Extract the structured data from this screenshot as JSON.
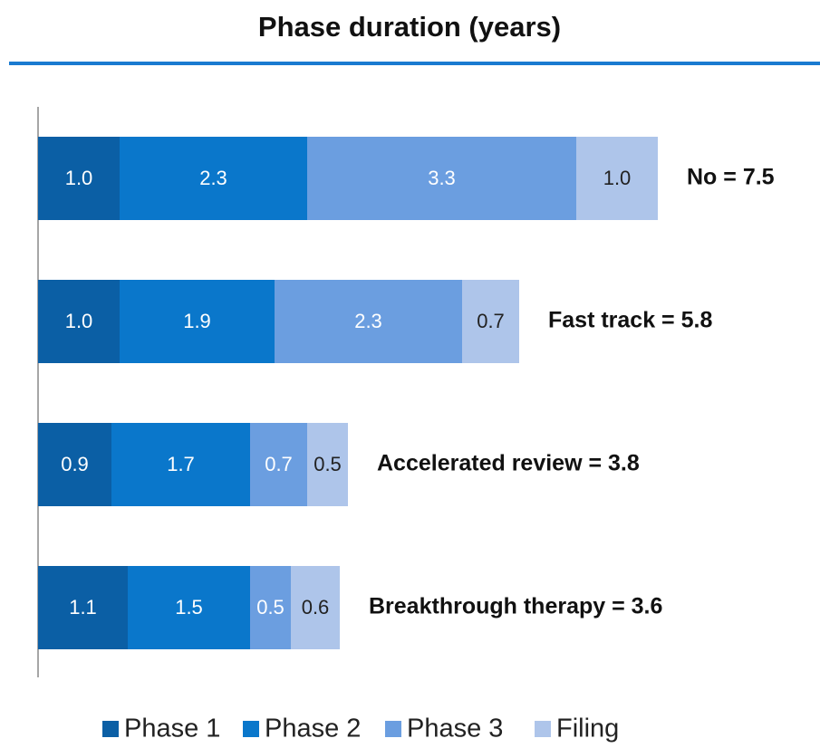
{
  "chart_data": {
    "type": "stacked-barh",
    "title": "Phase duration (years)",
    "categories": [
      "No = 7.5",
      "Fast track = 5.8",
      "Accelerated review = 3.8",
      "Breakthrough therapy = 3.6"
    ],
    "series": [
      {
        "name": "Phase 1",
        "color": "#0b5fa5",
        "values": [
          1.0,
          1.0,
          0.9,
          1.1
        ],
        "value_labels": [
          "1.0",
          "1.0",
          "0.9",
          "1.1"
        ]
      },
      {
        "name": "Phase 2",
        "color": "#0a77cb",
        "values": [
          2.3,
          1.9,
          1.7,
          1.5
        ],
        "value_labels": [
          "2.3",
          "1.9",
          "1.7",
          "1.5"
        ]
      },
      {
        "name": "Phase 3",
        "color": "#6b9ee0",
        "values": [
          3.3,
          2.3,
          0.7,
          0.5
        ],
        "value_labels": [
          "3.3",
          "2.3",
          "0.7",
          "0.5"
        ]
      },
      {
        "name": "Filing",
        "color": "#aec5ea",
        "values": [
          1.0,
          0.7,
          0.5,
          0.6
        ],
        "value_labels": [
          "1.0",
          "0.7",
          "0.5",
          "0.6"
        ]
      }
    ],
    "xlim": [
      0,
      9.5
    ]
  }
}
